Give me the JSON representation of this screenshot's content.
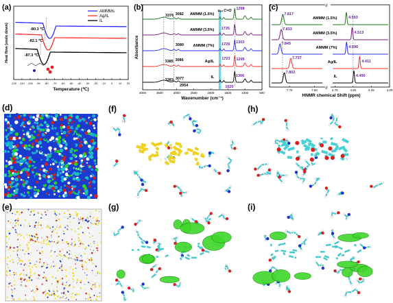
{
  "panels": {
    "a": {
      "label": "(a)"
    },
    "b": {
      "label": "(b)"
    },
    "c": {
      "label": "(c)"
    },
    "d": {
      "label": "(d)"
    },
    "e": {
      "label": "(e)"
    },
    "f": {
      "label": "(f)"
    },
    "g": {
      "label": "(g)"
    },
    "h": {
      "label": "(h)"
    },
    "i": {
      "label": "(i)"
    }
  },
  "chart_data": [
    {
      "id": "a",
      "type": "line",
      "xlabel": "Temperature (℃)",
      "ylabel": "Heat flow (endo down)",
      "xlim": [
        -120,
        20
      ],
      "xticks": [
        "-120",
        "-110",
        "-100",
        "-90",
        "-80",
        "-70",
        "-60",
        "-50",
        "-40",
        "-30",
        "-20",
        "-10",
        "0",
        "10",
        "20"
      ],
      "legend_position": "top-right",
      "series": [
        {
          "name": "AMMMs",
          "color": "#2a2aff",
          "tg_label": "-80.3 ℃",
          "tg": -80.3
        },
        {
          "name": "Ag/IL",
          "color": "#ff2a2a",
          "tg_label": "-82.1 ℃",
          "tg": -82.1
        },
        {
          "name": "IL",
          "color": "#000000",
          "tg_label": "-87.3 ℃",
          "tg": -87.3
        }
      ]
    },
    {
      "id": "b",
      "type": "line",
      "xlabel": "Wavenumber (cm⁻¹)",
      "ylabel": "Absorbance",
      "xlim": [
        4000,
        500
      ],
      "xticks": [
        "4000",
        "3500",
        "3000",
        "2500",
        "2000",
        "1500",
        "1000",
        "500"
      ],
      "series": [
        {
          "name": "AMMM (1.5%)",
          "color": "#1a7a1a"
        },
        {
          "name": "AMMM (3.5%)",
          "color": "#7a1a7a"
        },
        {
          "name": "AMMM (7%)",
          "color": "#2a2aff"
        },
        {
          "name": "Ag/IL",
          "color": "#ff2a2a"
        },
        {
          "name": "IL",
          "color": "#000000"
        }
      ],
      "annotations": [
        "3376",
        "3082",
        "1298",
        "1735",
        "3080",
        "1726",
        "1303",
        "3385",
        "3086",
        "1723",
        "1295",
        "3383",
        "3077",
        "1306",
        "2954",
        "1620"
      ],
      "band_label": "νₐₛ C=O"
    },
    {
      "id": "c",
      "type": "line",
      "xlabel": "HNMR chemical Shift (ppm)",
      "xticks": [
        "7.75",
        "7.50",
        "4.75",
        "4.50",
        "4.25",
        "4.00"
      ],
      "series": [
        {
          "name": "AMMM (1.5%)",
          "color": "#1a7a1a",
          "peaks": [
            7.817,
            4.593
          ]
        },
        {
          "name": "AMMM (3.5%)",
          "color": "#7a1a7a",
          "peaks": [
            7.833,
            4.513
          ]
        },
        {
          "name": "AMMM (7%)",
          "color": "#2a2aff",
          "peaks": [
            7.845,
            4.59
          ]
        },
        {
          "name": "Ag/IL",
          "color": "#ff2a2a",
          "peaks": [
            7.737,
            4.411
          ]
        },
        {
          "name": "IL",
          "color": "#000000",
          "peaks": [
            7.802,
            4.49
          ]
        }
      ],
      "peak_labels": [
        "7.817",
        "4.593",
        "7.833",
        "4.513",
        "7.845",
        "4.590",
        "7.737",
        "4.411",
        "7.802",
        "4.490"
      ]
    }
  ]
}
